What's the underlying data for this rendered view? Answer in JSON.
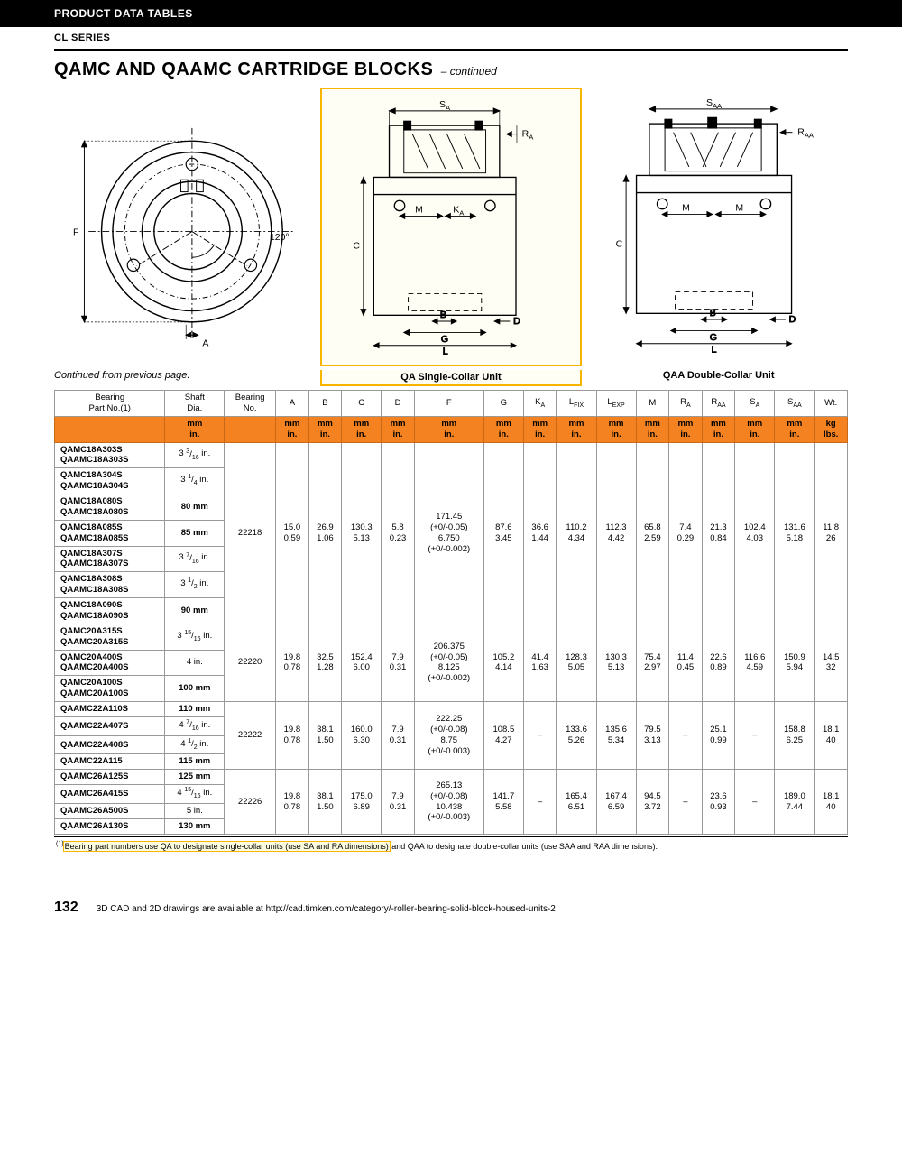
{
  "header": {
    "bar": "PRODUCT DATA TABLES",
    "sub": "CL SERIES"
  },
  "title": "QAMC AND QAAMC CARTRIDGE BLOCKS",
  "title_cont": "– continued",
  "diagrams": {
    "angle": "120°",
    "labels": {
      "F": "F",
      "A": "A",
      "B": "B",
      "C": "C",
      "D": "D",
      "G": "G",
      "L": "L",
      "M": "M",
      "Ka": "K",
      "Sa": "S",
      "Ra": "R",
      "Saa": "S",
      "Raa": "R"
    }
  },
  "captions": {
    "cont": "Continued from previous page.",
    "qa": "QA Single-Collar Unit",
    "qaa": "QAA Double-Collar Unit"
  },
  "columns": [
    {
      "h1": "Bearing",
      "h2": "Part No.(1)",
      "unit": ""
    },
    {
      "h1": "Shaft",
      "h2": "Dia.",
      "unit": "mm|in."
    },
    {
      "h1": "Bearing",
      "h2": "No.",
      "unit": ""
    },
    {
      "h1": "A",
      "h2": "",
      "unit": "mm|in."
    },
    {
      "h1": "B",
      "h2": "",
      "unit": "mm|in."
    },
    {
      "h1": "C",
      "h2": "",
      "unit": "mm|in."
    },
    {
      "h1": "D",
      "h2": "",
      "unit": "mm|in."
    },
    {
      "h1": "F",
      "h2": "",
      "unit": "mm|in."
    },
    {
      "h1": "G",
      "h2": "",
      "unit": "mm|in."
    },
    {
      "h1": "K",
      "h2": "A",
      "sub": true,
      "unit": "mm|in."
    },
    {
      "h1": "L",
      "h2": "FIX",
      "sub": true,
      "unit": "mm|in."
    },
    {
      "h1": "L",
      "h2": "EXP",
      "sub": true,
      "unit": "mm|in."
    },
    {
      "h1": "M",
      "h2": "",
      "unit": "mm|in."
    },
    {
      "h1": "R",
      "h2": "A",
      "sub": true,
      "unit": "mm|in."
    },
    {
      "h1": "R",
      "h2": "AA",
      "sub": true,
      "unit": "mm|in."
    },
    {
      "h1": "S",
      "h2": "A",
      "sub": true,
      "unit": "mm|in."
    },
    {
      "h1": "S",
      "h2": "AA",
      "sub": true,
      "unit": "mm|in."
    },
    {
      "h1": "Wt.",
      "h2": "",
      "unit": "kg|lbs."
    }
  ],
  "groups": [
    {
      "bearingNo": "22218",
      "parts": [
        {
          "p": "QAMC18A303S|QAAMC18A303S",
          "shaft": "3 3/16 in."
        },
        {
          "p": "QAMC18A304S|QAAMC18A304S",
          "shaft": "3 1/4 in."
        },
        {
          "p": "QAMC18A080S|QAAMC18A080S",
          "shaft": "80 mm",
          "bold": true
        },
        {
          "p": "QAMC18A085S|QAAMC18A085S",
          "shaft": "85 mm",
          "bold": true
        },
        {
          "p": "QAMC18A307S|QAAMC18A307S",
          "shaft": "3 7/16 in."
        },
        {
          "p": "QAMC18A308S|QAAMC18A308S",
          "shaft": "3 1/2 in."
        },
        {
          "p": "QAMC18A090S|QAAMC18A090S",
          "shaft": "90 mm",
          "bold": true
        }
      ],
      "vals": {
        "A": "15.0|0.59",
        "B": "26.9|1.06",
        "C": "130.3|5.13",
        "D": "5.8|0.23",
        "F": "171.45|(+0/-0.05)|6.750|(+0/-0.002)",
        "G": "87.6|3.45",
        "Ka": "36.6|1.44",
        "Lfix": "110.2|4.34",
        "Lexp": "112.3|4.42",
        "M": "65.8|2.59",
        "Ra": "7.4|0.29",
        "Raa": "21.3|0.84",
        "Sa": "102.4|4.03",
        "Saa": "131.6|5.18",
        "Wt": "11.8|26"
      }
    },
    {
      "bearingNo": "22220",
      "parts": [
        {
          "p": "QAMC20A315S|QAAMC20A315S",
          "shaft": "3 15/16 in."
        },
        {
          "p": "QAMC20A400S|QAAMC20A400S",
          "shaft": "4 in."
        },
        {
          "p": "QAMC20A100S|QAAMC20A100S",
          "shaft": "100 mm",
          "bold": true
        }
      ],
      "vals": {
        "A": "19.8|0.78",
        "B": "32.5|1.28",
        "C": "152.4|6.00",
        "D": "7.9|0.31",
        "F": "206.375|(+0/-0.05)|8.125|(+0/-0.002)",
        "G": "105.2|4.14",
        "Ka": "41.4|1.63",
        "Lfix": "128.3|5.05",
        "Lexp": "130.3|5.13",
        "M": "75.4|2.97",
        "Ra": "11.4|0.45",
        "Raa": "22.6|0.89",
        "Sa": "116.6|4.59",
        "Saa": "150.9|5.94",
        "Wt": "14.5|32"
      }
    },
    {
      "bearingNo": "22222",
      "parts": [
        {
          "p": "QAAMC22A110S",
          "shaft": "110 mm",
          "bold": true
        },
        {
          "p": "QAAMC22A407S",
          "shaft": "4 7/16 in."
        },
        {
          "p": "QAAMC22A408S",
          "shaft": "4 1/2 in."
        },
        {
          "p": "QAAMC22A115",
          "shaft": "115 mm",
          "bold": true
        }
      ],
      "vals": {
        "A": "19.8|0.78",
        "B": "38.1|1.50",
        "C": "160.0|6.30",
        "D": "7.9|0.31",
        "F": "222.25|(+0/-0.08)|8.75|(+0/-0.003)",
        "G": "108.5|4.27",
        "Ka": "–",
        "Lfix": "133.6|5.26",
        "Lexp": "135.6|5.34",
        "M": "79.5|3.13",
        "Ra": "–",
        "Raa": "25.1|0.99",
        "Sa": "–",
        "Saa": "158.8|6.25",
        "Wt": "18.1|40"
      }
    },
    {
      "bearingNo": "22226",
      "parts": [
        {
          "p": "QAAMC26A125S",
          "shaft": "125 mm",
          "bold": true
        },
        {
          "p": "QAAMC26A415S",
          "shaft": "4 15/16 in."
        },
        {
          "p": "QAAMC26A500S",
          "shaft": "5 in."
        },
        {
          "p": "QAAMC26A130S",
          "shaft": "130 mm",
          "bold": true
        }
      ],
      "vals": {
        "A": "19.8|0.78",
        "B": "38.1|1.50",
        "C": "175.0|6.89",
        "D": "7.9|0.31",
        "F": "265.13|(+0/-0.08)|10.438|(+0/-0.003)",
        "G": "141.7|5.58",
        "Ka": "–",
        "Lfix": "165.4|6.51",
        "Lexp": "167.4|6.59",
        "M": "94.5|3.72",
        "Ra": "–",
        "Raa": "23.6|0.93",
        "Sa": "–",
        "Saa": "189.0|7.44",
        "Wt": "18.1|40"
      }
    }
  ],
  "footnote_pre": "(1)",
  "footnote_hl": "Bearing part numbers use QA to designate single-collar units (use SA and RA dimensions)",
  "footnote_post": " and QAA to designate double-collar units (use SAA and RAA dimensions).",
  "page_num": "132",
  "page_foot": "3D CAD and 2D drawings are available at http://cad.timken.com/category/-roller-bearing-solid-block-housed-units-2"
}
